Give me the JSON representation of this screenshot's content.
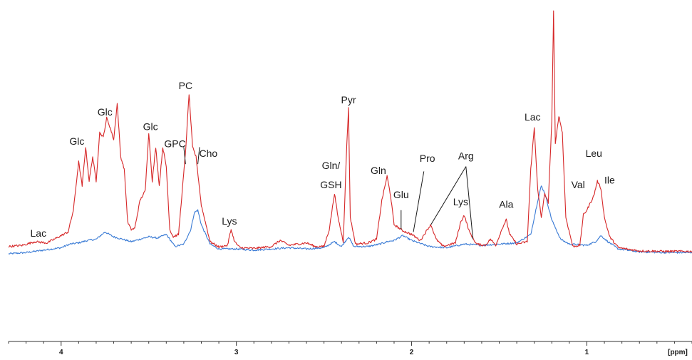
{
  "chart_data": {
    "type": "line",
    "title": "",
    "xlabel": "[ppm]",
    "ylabel": "",
    "x_reversed": true,
    "xlim": [
      4.3,
      0.4
    ],
    "ylim": [
      0,
      100
    ],
    "grid": false,
    "legend": "none",
    "x_ticks": [
      {
        "value": 4,
        "label": "4"
      },
      {
        "value": 3,
        "label": "3"
      },
      {
        "value": 2,
        "label": "2"
      },
      {
        "value": 1,
        "label": "1"
      }
    ],
    "series": [
      {
        "color": "#d62728",
        "points": [
          [
            4.3,
            3.0
          ],
          [
            4.22,
            3.5
          ],
          [
            4.15,
            5.0
          ],
          [
            4.08,
            4.5
          ],
          [
            4.0,
            7.5
          ],
          [
            3.96,
            9.0
          ],
          [
            3.93,
            18.0
          ],
          [
            3.9,
            38.0
          ],
          [
            3.88,
            28.0
          ],
          [
            3.86,
            44.0
          ],
          [
            3.84,
            30.0
          ],
          [
            3.82,
            40.0
          ],
          [
            3.8,
            30.0
          ],
          [
            3.78,
            50.0
          ],
          [
            3.76,
            48.0
          ],
          [
            3.74,
            56.0
          ],
          [
            3.72,
            52.0
          ],
          [
            3.7,
            47.0
          ],
          [
            3.68,
            62.0
          ],
          [
            3.66,
            40.0
          ],
          [
            3.64,
            35.0
          ],
          [
            3.62,
            13.0
          ],
          [
            3.6,
            10.0
          ],
          [
            3.58,
            10.5
          ],
          [
            3.55,
            22.0
          ],
          [
            3.52,
            26.0
          ],
          [
            3.5,
            50.0
          ],
          [
            3.48,
            30.0
          ],
          [
            3.46,
            44.0
          ],
          [
            3.44,
            28.0
          ],
          [
            3.42,
            44.0
          ],
          [
            3.4,
            36.0
          ],
          [
            3.38,
            10.0
          ],
          [
            3.36,
            7.0
          ],
          [
            3.33,
            8.0
          ],
          [
            3.29,
            42.0
          ],
          [
            3.27,
            66.0
          ],
          [
            3.25,
            44.0
          ],
          [
            3.23,
            40.0
          ],
          [
            3.2,
            20.0
          ],
          [
            3.15,
            5.0
          ],
          [
            3.1,
            2.8
          ],
          [
            3.05,
            3.5
          ],
          [
            3.04,
            7.0
          ],
          [
            3.03,
            10.0
          ],
          [
            3.01,
            5.0
          ],
          [
            2.98,
            2.5
          ],
          [
            2.9,
            2.2
          ],
          [
            2.8,
            3.0
          ],
          [
            2.75,
            5.5
          ],
          [
            2.7,
            3.5
          ],
          [
            2.6,
            4.5
          ],
          [
            2.55,
            3.0
          ],
          [
            2.5,
            3.0
          ],
          [
            2.47,
            10.0
          ],
          [
            2.44,
            25.0
          ],
          [
            2.42,
            15.0
          ],
          [
            2.39,
            5.0
          ],
          [
            2.37,
            45.0
          ],
          [
            2.36,
            60.0
          ],
          [
            2.35,
            15.0
          ],
          [
            2.32,
            4.0
          ],
          [
            2.25,
            4.5
          ],
          [
            2.2,
            6.0
          ],
          [
            2.17,
            22.0
          ],
          [
            2.14,
            32.0
          ],
          [
            2.12,
            24.0
          ],
          [
            2.1,
            12.0
          ],
          [
            2.05,
            9.5
          ],
          [
            2.0,
            8.0
          ],
          [
            1.95,
            5.5
          ],
          [
            1.91,
            10.0
          ],
          [
            1.89,
            12.0
          ],
          [
            1.86,
            6.0
          ],
          [
            1.82,
            3.0
          ],
          [
            1.75,
            4.5
          ],
          [
            1.72,
            13.0
          ],
          [
            1.7,
            16.0
          ],
          [
            1.67,
            9.0
          ],
          [
            1.63,
            4.0
          ],
          [
            1.58,
            3.5
          ],
          [
            1.55,
            6.0
          ],
          [
            1.52,
            3.5
          ],
          [
            1.48,
            11.0
          ],
          [
            1.46,
            14.0
          ],
          [
            1.44,
            8.0
          ],
          [
            1.4,
            4.0
          ],
          [
            1.34,
            5.0
          ],
          [
            1.32,
            35.0
          ],
          [
            1.3,
            52.0
          ],
          [
            1.28,
            26.0
          ],
          [
            1.26,
            15.0
          ],
          [
            1.24,
            25.0
          ],
          [
            1.22,
            21.0
          ],
          [
            1.2,
            55.0
          ],
          [
            1.19,
            100.0
          ],
          [
            1.18,
            45.0
          ],
          [
            1.16,
            57.0
          ],
          [
            1.14,
            50.0
          ],
          [
            1.12,
            15.0
          ],
          [
            1.08,
            3.0
          ],
          [
            1.04,
            3.5
          ],
          [
            1.02,
            16.0
          ],
          [
            1.0,
            18.0
          ],
          [
            0.98,
            21.0
          ],
          [
            0.96,
            24.0
          ],
          [
            0.94,
            30.0
          ],
          [
            0.92,
            27.0
          ],
          [
            0.9,
            15.0
          ],
          [
            0.87,
            7.0
          ],
          [
            0.82,
            2.5
          ],
          [
            0.7,
            1.2
          ],
          [
            0.55,
            1.0
          ],
          [
            0.4,
            1.0
          ]
        ]
      },
      {
        "color": "#3a7bd5",
        "points": [
          [
            4.3,
            0.0
          ],
          [
            4.2,
            0.5
          ],
          [
            4.1,
            1.5
          ],
          [
            4.0,
            2.5
          ],
          [
            3.95,
            4.0
          ],
          [
            3.9,
            4.5
          ],
          [
            3.85,
            5.5
          ],
          [
            3.8,
            6.0
          ],
          [
            3.75,
            9.0
          ],
          [
            3.7,
            7.0
          ],
          [
            3.65,
            6.0
          ],
          [
            3.6,
            5.0
          ],
          [
            3.55,
            6.0
          ],
          [
            3.5,
            7.0
          ],
          [
            3.45,
            6.5
          ],
          [
            3.4,
            8.0
          ],
          [
            3.35,
            3.0
          ],
          [
            3.3,
            4.0
          ],
          [
            3.26,
            10.0
          ],
          [
            3.24,
            17.0
          ],
          [
            3.22,
            18.0
          ],
          [
            3.2,
            12.0
          ],
          [
            3.15,
            4.0
          ],
          [
            3.1,
            2.0
          ],
          [
            3.0,
            2.0
          ],
          [
            2.9,
            1.5
          ],
          [
            2.8,
            2.0
          ],
          [
            2.7,
            2.5
          ],
          [
            2.6,
            2.0
          ],
          [
            2.5,
            2.5
          ],
          [
            2.44,
            5.0
          ],
          [
            2.4,
            3.0
          ],
          [
            2.36,
            7.0
          ],
          [
            2.33,
            3.0
          ],
          [
            2.25,
            3.0
          ],
          [
            2.18,
            4.0
          ],
          [
            2.14,
            5.0
          ],
          [
            2.1,
            5.5
          ],
          [
            2.05,
            7.5
          ],
          [
            2.0,
            5.5
          ],
          [
            1.9,
            3.0
          ],
          [
            1.8,
            2.5
          ],
          [
            1.7,
            4.0
          ],
          [
            1.6,
            3.5
          ],
          [
            1.5,
            4.0
          ],
          [
            1.4,
            4.5
          ],
          [
            1.32,
            8.0
          ],
          [
            1.28,
            22.0
          ],
          [
            1.26,
            28.0
          ],
          [
            1.24,
            25.0
          ],
          [
            1.2,
            14.0
          ],
          [
            1.15,
            6.0
          ],
          [
            1.1,
            4.0
          ],
          [
            1.0,
            3.5
          ],
          [
            0.95,
            5.0
          ],
          [
            0.92,
            7.5
          ],
          [
            0.88,
            5.0
          ],
          [
            0.82,
            2.0
          ],
          [
            0.7,
            0.8
          ],
          [
            0.55,
            0.5
          ],
          [
            0.4,
            0.5
          ]
        ]
      }
    ],
    "annotations": [
      {
        "text": "Lac",
        "x": 4.13,
        "y": 7
      },
      {
        "text": "Glc",
        "x": 3.91,
        "y": 45
      },
      {
        "text": "Glc",
        "x": 3.75,
        "y": 57
      },
      {
        "text": "Glc",
        "x": 3.49,
        "y": 51
      },
      {
        "text": "GPC",
        "x": 3.35,
        "y": 44
      },
      {
        "text": "PC",
        "x": 3.29,
        "y": 68
      },
      {
        "text": "Cho",
        "x": 3.16,
        "y": 40
      },
      {
        "text": "Lys",
        "x": 3.04,
        "y": 12
      },
      {
        "text": "Gln/",
        "x": 2.46,
        "y": 35
      },
      {
        "text": "GSH",
        "x": 2.46,
        "y": 27
      },
      {
        "text": "Pyr",
        "x": 2.36,
        "y": 62
      },
      {
        "text": "Gln",
        "x": 2.19,
        "y": 33
      },
      {
        "text": "Glu",
        "x": 2.06,
        "y": 23
      },
      {
        "text": "Pro",
        "x": 1.91,
        "y": 38
      },
      {
        "text": "Arg",
        "x": 1.69,
        "y": 39
      },
      {
        "text": "Lys",
        "x": 1.72,
        "y": 20
      },
      {
        "text": "Ala",
        "x": 1.46,
        "y": 19
      },
      {
        "text": "Lac",
        "x": 1.31,
        "y": 55
      },
      {
        "text": "Val",
        "x": 1.05,
        "y": 27
      },
      {
        "text": "Leu",
        "x": 0.96,
        "y": 40
      },
      {
        "text": "Ile",
        "x": 0.87,
        "y": 29
      }
    ],
    "pointers": [
      {
        "label": "GPC",
        "from": [
          3.3,
          44
        ],
        "to": [
          3.29,
          37
        ]
      },
      {
        "label": "Cho",
        "from": [
          3.21,
          44
        ],
        "to": [
          3.22,
          37
        ]
      },
      {
        "label": "Glu",
        "from": [
          2.06,
          18
        ],
        "to": [
          2.06,
          10
        ]
      },
      {
        "label": "Pro",
        "from": [
          1.93,
          34
        ],
        "to": [
          1.99,
          9
        ]
      },
      {
        "label": "Arg",
        "from": [
          1.69,
          36
        ],
        "to": [
          1.89,
          12
        ]
      },
      {
        "label": "Arg",
        "from": [
          1.69,
          36
        ],
        "to": [
          1.65,
          6
        ]
      }
    ]
  }
}
